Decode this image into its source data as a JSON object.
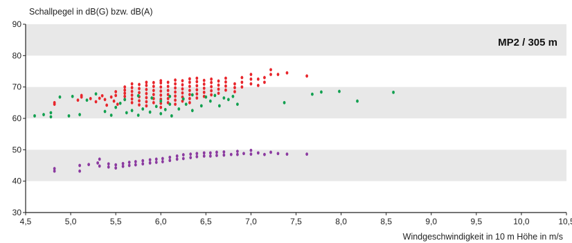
{
  "chart_data": {
    "type": "scatter",
    "title": "",
    "ylabel": "Schallpegel in dB(G) bzw. dB(A)",
    "xlabel": "Windgeschwindigkeit in 10 m Höhe in m/s",
    "annotation": "MP2 / 305 m",
    "xlim": [
      4.5,
      10.5
    ],
    "ylim": [
      30,
      90
    ],
    "x_ticks": [
      "4,5",
      "5,0",
      "5,5",
      "6,0",
      "6,5",
      "7,0",
      "7,5",
      "8,0",
      "8,5",
      "9,0",
      "9,5",
      "10,0",
      "10,5"
    ],
    "y_ticks": [
      "30",
      "40",
      "50",
      "60",
      "70",
      "80",
      "90"
    ],
    "grid": "alternating horizontal bands",
    "band_color": "#e8e8e8",
    "legend": "none",
    "series": [
      {
        "color": "#e8262c",
        "points": [
          [
            4.82,
            64.5
          ],
          [
            4.82,
            65.0
          ],
          [
            5.08,
            65.8
          ],
          [
            5.12,
            66.8
          ],
          [
            5.12,
            67.3
          ],
          [
            5.22,
            66.3
          ],
          [
            5.28,
            65.3
          ],
          [
            5.32,
            66.4
          ],
          [
            5.35,
            67.2
          ],
          [
            5.38,
            66.0
          ],
          [
            5.4,
            64.2
          ],
          [
            5.45,
            66.8
          ],
          [
            5.48,
            65.5
          ],
          [
            5.5,
            67.3
          ],
          [
            5.5,
            68.5
          ],
          [
            5.52,
            64.5
          ],
          [
            5.6,
            66.0
          ],
          [
            5.6,
            67.0
          ],
          [
            5.6,
            68.0
          ],
          [
            5.6,
            69.0
          ],
          [
            5.6,
            70.0
          ],
          [
            5.68,
            65.0
          ],
          [
            5.68,
            66.2
          ],
          [
            5.68,
            67.4
          ],
          [
            5.68,
            68.6
          ],
          [
            5.68,
            69.8
          ],
          [
            5.68,
            71.0
          ],
          [
            5.76,
            64.3
          ],
          [
            5.76,
            65.6
          ],
          [
            5.76,
            66.9
          ],
          [
            5.76,
            68.2
          ],
          [
            5.76,
            69.5
          ],
          [
            5.76,
            70.8
          ],
          [
            5.84,
            64.0
          ],
          [
            5.84,
            65.3
          ],
          [
            5.84,
            66.6
          ],
          [
            5.84,
            67.9
          ],
          [
            5.84,
            69.2
          ],
          [
            5.84,
            70.5
          ],
          [
            5.84,
            71.5
          ],
          [
            5.92,
            65.0
          ],
          [
            5.92,
            66.3
          ],
          [
            5.92,
            67.6
          ],
          [
            5.92,
            68.9
          ],
          [
            5.92,
            70.2
          ],
          [
            5.92,
            71.4
          ],
          [
            6.0,
            63.5
          ],
          [
            6.0,
            64.8
          ],
          [
            6.0,
            66.1
          ],
          [
            6.0,
            67.4
          ],
          [
            6.0,
            68.7
          ],
          [
            6.0,
            70.0
          ],
          [
            6.0,
            71.3
          ],
          [
            6.0,
            72.0
          ],
          [
            6.08,
            65.0
          ],
          [
            6.08,
            66.3
          ],
          [
            6.08,
            67.6
          ],
          [
            6.08,
            68.9
          ],
          [
            6.08,
            70.2
          ],
          [
            6.08,
            71.5
          ],
          [
            6.16,
            64.5
          ],
          [
            6.16,
            65.8
          ],
          [
            6.16,
            67.1
          ],
          [
            6.16,
            68.4
          ],
          [
            6.16,
            69.7
          ],
          [
            6.16,
            71.0
          ],
          [
            6.16,
            72.2
          ],
          [
            6.24,
            65.5
          ],
          [
            6.24,
            66.8
          ],
          [
            6.24,
            68.1
          ],
          [
            6.24,
            69.4
          ],
          [
            6.24,
            70.7
          ],
          [
            6.24,
            72.0
          ],
          [
            6.32,
            65.0
          ],
          [
            6.32,
            66.3
          ],
          [
            6.32,
            67.6
          ],
          [
            6.32,
            68.9
          ],
          [
            6.32,
            70.2
          ],
          [
            6.32,
            71.5
          ],
          [
            6.32,
            72.6
          ],
          [
            6.4,
            66.5
          ],
          [
            6.4,
            67.8
          ],
          [
            6.4,
            69.1
          ],
          [
            6.4,
            70.4
          ],
          [
            6.4,
            71.7
          ],
          [
            6.4,
            72.8
          ],
          [
            6.48,
            67.0
          ],
          [
            6.48,
            68.3
          ],
          [
            6.48,
            69.6
          ],
          [
            6.48,
            70.9
          ],
          [
            6.48,
            72.1
          ],
          [
            6.56,
            67.5
          ],
          [
            6.56,
            68.8
          ],
          [
            6.56,
            70.1
          ],
          [
            6.56,
            71.4
          ],
          [
            6.56,
            72.5
          ],
          [
            6.64,
            68.0
          ],
          [
            6.64,
            69.3
          ],
          [
            6.64,
            70.6
          ],
          [
            6.64,
            71.9
          ],
          [
            6.72,
            69.0
          ],
          [
            6.72,
            70.3
          ],
          [
            6.72,
            71.6
          ],
          [
            6.72,
            72.8
          ],
          [
            6.82,
            68.5
          ],
          [
            6.82,
            69.8
          ],
          [
            6.82,
            71.0
          ],
          [
            6.9,
            70.0
          ],
          [
            6.9,
            71.5
          ],
          [
            6.9,
            73.0
          ],
          [
            7.0,
            71.0
          ],
          [
            7.0,
            72.5
          ],
          [
            7.0,
            74.0
          ],
          [
            7.08,
            70.5
          ],
          [
            7.08,
            72.5
          ],
          [
            7.15,
            73.0
          ],
          [
            7.15,
            71.5
          ],
          [
            7.22,
            74.0
          ],
          [
            7.22,
            75.5
          ],
          [
            7.3,
            74.0
          ],
          [
            7.4,
            74.5
          ],
          [
            7.62,
            73.5
          ]
        ]
      },
      {
        "color": "#12a050",
        "points": [
          [
            4.6,
            60.8
          ],
          [
            4.7,
            61.2
          ],
          [
            4.78,
            60.5
          ],
          [
            4.78,
            61.8
          ],
          [
            4.88,
            66.8
          ],
          [
            4.98,
            60.8
          ],
          [
            5.02,
            67.0
          ],
          [
            5.1,
            61.2
          ],
          [
            5.18,
            65.8
          ],
          [
            5.28,
            67.8
          ],
          [
            5.38,
            62.2
          ],
          [
            5.45,
            61.0
          ],
          [
            5.5,
            63.5
          ],
          [
            5.55,
            64.8
          ],
          [
            5.62,
            61.8
          ],
          [
            5.68,
            62.5
          ],
          [
            5.75,
            61.0
          ],
          [
            5.8,
            63.0
          ],
          [
            5.88,
            62.0
          ],
          [
            5.95,
            63.8
          ],
          [
            6.0,
            61.5
          ],
          [
            6.05,
            62.8
          ],
          [
            6.1,
            64.5
          ],
          [
            6.12,
            60.8
          ],
          [
            6.2,
            63.0
          ],
          [
            6.28,
            64.5
          ],
          [
            6.35,
            62.5
          ],
          [
            6.45,
            64.0
          ],
          [
            6.55,
            65.5
          ],
          [
            6.65,
            64.0
          ],
          [
            6.75,
            66.0
          ],
          [
            6.85,
            64.5
          ],
          [
            5.6,
            66.0
          ],
          [
            5.75,
            67.2
          ],
          [
            5.9,
            66.5
          ],
          [
            6.0,
            65.5
          ],
          [
            6.1,
            67.0
          ],
          [
            6.25,
            66.2
          ],
          [
            6.35,
            67.5
          ],
          [
            6.5,
            66.8
          ],
          [
            6.6,
            67.3
          ],
          [
            6.7,
            66.5
          ],
          [
            6.8,
            67.0
          ],
          [
            7.37,
            65.0
          ],
          [
            7.68,
            67.7
          ],
          [
            7.78,
            68.4
          ],
          [
            7.98,
            68.6
          ],
          [
            8.18,
            65.5
          ],
          [
            8.58,
            68.3
          ]
        ]
      },
      {
        "color": "#8b3aa0",
        "points": [
          [
            4.82,
            43.2
          ],
          [
            4.82,
            44.0
          ],
          [
            5.1,
            43.2
          ],
          [
            5.1,
            45.0
          ],
          [
            5.2,
            45.3
          ],
          [
            5.3,
            45.8
          ],
          [
            5.32,
            47.0
          ],
          [
            5.32,
            44.8
          ],
          [
            5.42,
            44.5
          ],
          [
            5.42,
            45.5
          ],
          [
            5.5,
            44.2
          ],
          [
            5.5,
            45.2
          ],
          [
            5.58,
            44.7
          ],
          [
            5.58,
            45.6
          ],
          [
            5.65,
            45.0
          ],
          [
            5.65,
            46.0
          ],
          [
            5.72,
            45.2
          ],
          [
            5.72,
            46.2
          ],
          [
            5.8,
            45.5
          ],
          [
            5.8,
            46.5
          ],
          [
            5.88,
            45.8
          ],
          [
            5.88,
            46.8
          ],
          [
            5.95,
            46.0
          ],
          [
            5.95,
            47.0
          ],
          [
            6.02,
            46.2
          ],
          [
            6.02,
            47.2
          ],
          [
            6.1,
            46.6
          ],
          [
            6.1,
            47.6
          ],
          [
            6.18,
            47.0
          ],
          [
            6.18,
            48.0
          ],
          [
            6.25,
            47.2
          ],
          [
            6.25,
            48.4
          ],
          [
            6.33,
            47.5
          ],
          [
            6.33,
            48.6
          ],
          [
            6.4,
            47.8
          ],
          [
            6.4,
            48.8
          ],
          [
            6.48,
            48.0
          ],
          [
            6.48,
            49.0
          ],
          [
            6.55,
            48.0
          ],
          [
            6.55,
            49.0
          ],
          [
            6.62,
            48.2
          ],
          [
            6.62,
            49.2
          ],
          [
            6.7,
            48.3
          ],
          [
            6.7,
            49.3
          ],
          [
            6.78,
            48.5
          ],
          [
            6.85,
            48.5
          ],
          [
            6.85,
            49.5
          ],
          [
            6.92,
            48.8
          ],
          [
            7.0,
            48.6
          ],
          [
            7.0,
            49.8
          ],
          [
            7.08,
            49.0
          ],
          [
            7.15,
            48.5
          ],
          [
            7.22,
            49.2
          ],
          [
            7.3,
            48.8
          ],
          [
            7.4,
            48.6
          ],
          [
            7.62,
            48.6
          ]
        ]
      }
    ]
  }
}
